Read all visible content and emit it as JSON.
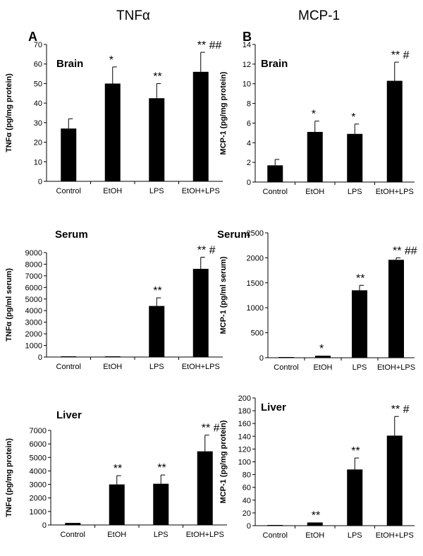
{
  "columns": [
    {
      "title": "TNFα",
      "panel": "A"
    },
    {
      "title": "MCP-1",
      "panel": "B"
    }
  ],
  "colors": {
    "bar": "#000000",
    "axis": "#000000",
    "background": "#ffffff"
  },
  "chart_data": [
    {
      "id": "tnf-brain",
      "type": "bar",
      "title": "Brain",
      "ylabel": "TNFα (pg/mg protein)",
      "xlabel": "",
      "categories": [
        "Control",
        "EtOH",
        "LPS",
        "EtOH+LPS"
      ],
      "values": [
        27,
        50,
        42.5,
        56
      ],
      "errors": [
        5,
        8.5,
        7.5,
        10
      ],
      "annotations": [
        "",
        "*",
        "**",
        "** ##"
      ],
      "ylim": [
        0,
        70
      ],
      "yticks": [
        "0",
        "10",
        "20",
        "30",
        "40",
        "50",
        "60",
        "70"
      ],
      "grid": false
    },
    {
      "id": "mcp-brain",
      "type": "bar",
      "title": "Brain",
      "ylabel": "MCP-1 (pg/mg protein)",
      "xlabel": "",
      "categories": [
        "Control",
        "EtOH",
        "LPS",
        "EtOH+LPS"
      ],
      "values": [
        1.7,
        5.1,
        4.9,
        10.3
      ],
      "errors": [
        0.6,
        1.1,
        1.0,
        1.9
      ],
      "annotations": [
        "",
        "*",
        "*",
        "** #"
      ],
      "ylim": [
        0,
        14
      ],
      "yticks": [
        "0",
        "2",
        "4",
        "6",
        "8",
        "10",
        "12",
        "14"
      ],
      "grid": false
    },
    {
      "id": "tnf-serum",
      "type": "bar",
      "title": "Serum",
      "ylabel": "TNFα (pg/ml serum)",
      "xlabel": "",
      "categories": [
        "Control",
        "EtOH",
        "LPS",
        "EtOH+LPS"
      ],
      "values": [
        20,
        60,
        4400,
        7600
      ],
      "errors": [
        0,
        0,
        700,
        1000
      ],
      "annotations": [
        "",
        "",
        "**",
        "** #"
      ],
      "ylim": [
        0,
        9000
      ],
      "yticks": [
        "0",
        "1000",
        "2000",
        "3000",
        "4000",
        "5000",
        "6000",
        "7000",
        "8000",
        "9000"
      ],
      "grid": false
    },
    {
      "id": "mcp-serum",
      "type": "bar",
      "title": "Serum",
      "ylabel": "MCP-1 (pg/ml serum)",
      "xlabel": "",
      "categories": [
        "Control",
        "EtOH",
        "LPS",
        "EtOH+LPS"
      ],
      "values": [
        5,
        40,
        1350,
        1960
      ],
      "errors": [
        0,
        0,
        100,
        40
      ],
      "annotations": [
        "",
        "*",
        "**",
        "** ##"
      ],
      "ylim": [
        0,
        2500
      ],
      "yticks": [
        "0",
        "500",
        "1000",
        "1500",
        "2000",
        "2500"
      ],
      "grid": false
    },
    {
      "id": "tnf-liver",
      "type": "bar",
      "title": "Liver",
      "ylabel": "TNFα (pg/mg protein)",
      "xlabel": "",
      "categories": [
        "Control",
        "EtOH",
        "LPS",
        "EtOH+LPS"
      ],
      "values": [
        150,
        3000,
        3050,
        5450
      ],
      "errors": [
        0,
        650,
        650,
        1200
      ],
      "annotations": [
        "",
        "**",
        "**",
        "** #"
      ],
      "ylim": [
        0,
        7000
      ],
      "yticks": [
        "0",
        "1000",
        "2000",
        "3000",
        "4000",
        "5000",
        "6000",
        "7000"
      ],
      "grid": false
    },
    {
      "id": "mcp-liver",
      "type": "bar",
      "title": "Liver",
      "ylabel": "MCP-1 (pg/mg protein)",
      "xlabel": "",
      "categories": [
        "Control",
        "EtOH",
        "LPS",
        "EtOH+LPS"
      ],
      "values": [
        1,
        5,
        88,
        141
      ],
      "errors": [
        0,
        0,
        18,
        30
      ],
      "annotations": [
        "",
        "**",
        "**",
        "** #"
      ],
      "ylim": [
        0,
        200
      ],
      "yticks": [
        "0",
        "20",
        "40",
        "60",
        "80",
        "100",
        "120",
        "140",
        "160",
        "180",
        "200"
      ],
      "grid": false
    }
  ]
}
